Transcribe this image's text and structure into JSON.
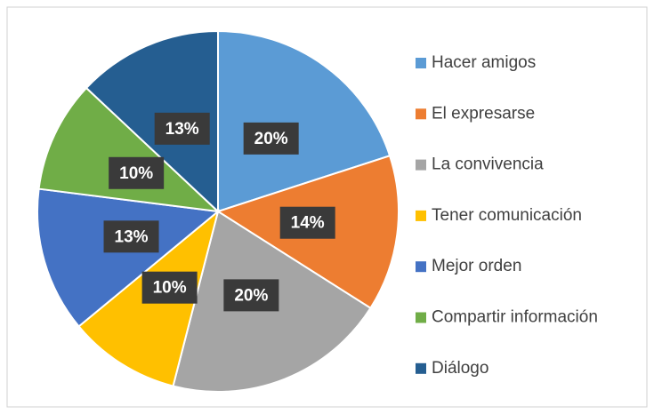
{
  "chart_data": {
    "type": "pie",
    "categories": [
      "Hacer amigos",
      "El expresarse",
      "La convivencia",
      "Tener comunicación",
      "Mejor orden",
      "Compartir información",
      "Diálogo"
    ],
    "values": [
      20,
      14,
      20,
      10,
      13,
      10,
      13
    ],
    "value_labels": [
      "20%",
      "14%",
      "20%",
      "10%",
      "13%",
      "10%",
      "13%"
    ],
    "colors": [
      "#5b9bd5",
      "#ed7d31",
      "#a5a5a5",
      "#ffc000",
      "#4472c4",
      "#70ad47",
      "#255e91"
    ],
    "legend": "right"
  }
}
